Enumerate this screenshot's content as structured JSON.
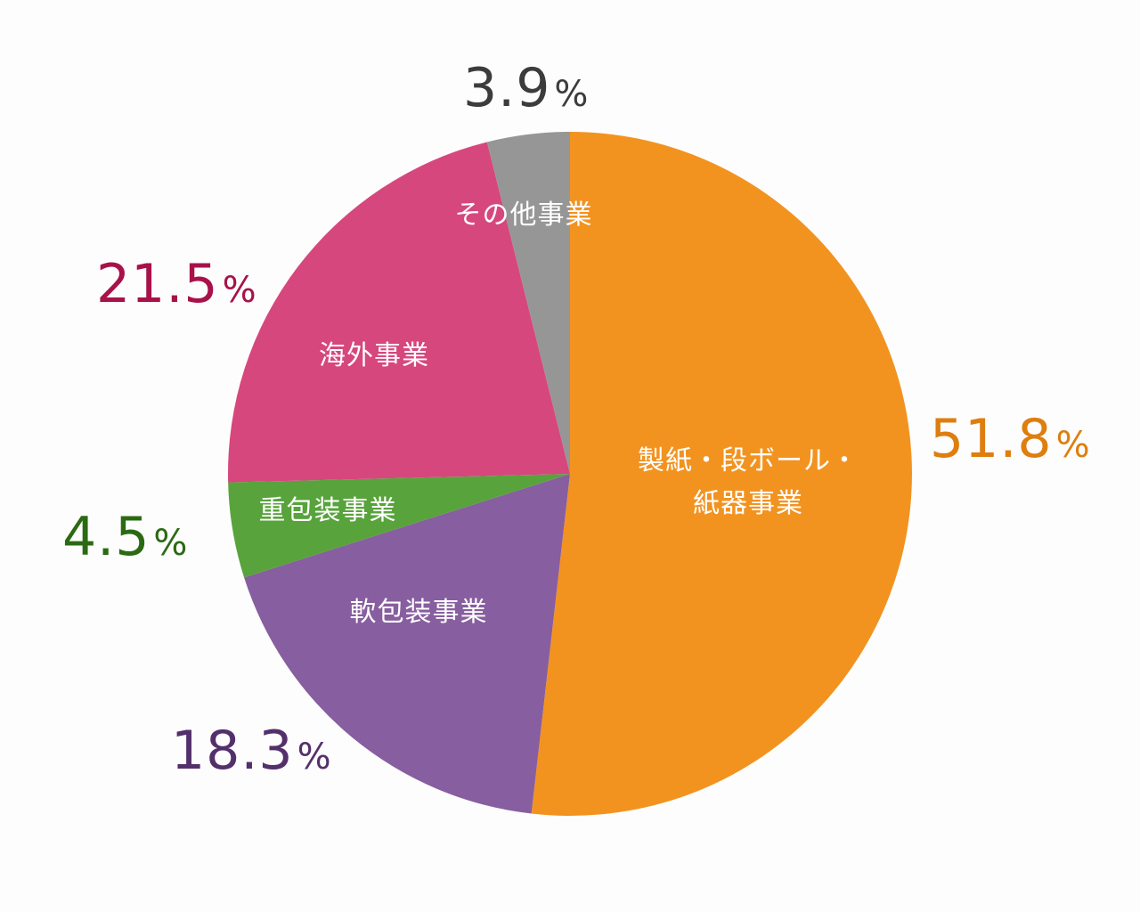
{
  "chart_data": {
    "type": "pie",
    "title": "",
    "start_angle": "12 o'clock",
    "direction": "clockwise",
    "legend": "none (labels inside slices)",
    "slices": [
      {
        "label": "製紙・段ボール・紙器事業",
        "label_lines": [
          "製紙・段ボール・",
          "紙器事業"
        ],
        "value": 51.8,
        "color": "#F29320",
        "pct_color": "#DE7E0F"
      },
      {
        "label": "軟包装事業",
        "label_lines": [
          "軟包装事業"
        ],
        "value": 18.3,
        "color": "#875E9F",
        "pct_color": "#53306B"
      },
      {
        "label": "重包装事業",
        "label_lines": [
          "重包装事業"
        ],
        "value": 4.5,
        "color": "#58A33C",
        "pct_color": "#2B6A12"
      },
      {
        "label": "海外事業",
        "label_lines": [
          "海外事業"
        ],
        "value": 21.5,
        "color": "#D6477D",
        "pct_color": "#A8114A"
      },
      {
        "label": "その他事業",
        "label_lines": [
          "その他事業"
        ],
        "value": 3.9,
        "color": "#969696",
        "pct_color": "#3C3C3C"
      }
    ]
  },
  "labels": {
    "s0": {
      "line1": "製紙・段ボール・",
      "line2": "紙器事業",
      "pct": "51.8",
      "sign": "%"
    },
    "s1": {
      "line1": "軟包装事業",
      "pct": "18.3",
      "sign": "%"
    },
    "s2": {
      "line1": "重包装事業",
      "pct": "4.5",
      "sign": "%"
    },
    "s3": {
      "line1": "海外事業",
      "pct": "21.5",
      "sign": "%"
    },
    "s4": {
      "line1": "その他事業",
      "pct": "3.9",
      "sign": "%"
    }
  }
}
